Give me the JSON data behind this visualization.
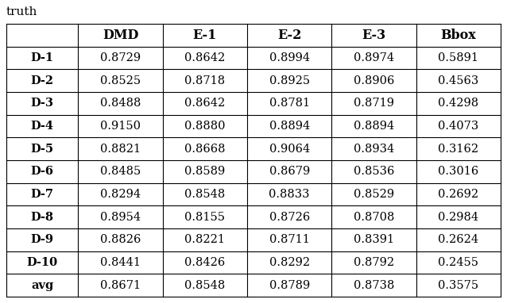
{
  "title": "truth",
  "columns": [
    "",
    "DMD",
    "E-1",
    "E-2",
    "E-3",
    "Bbox"
  ],
  "rows": [
    [
      "D-1",
      "0.8729",
      "0.8642",
      "0.8994",
      "0.8974",
      "0.5891"
    ],
    [
      "D-2",
      "0.8525",
      "0.8718",
      "0.8925",
      "0.8906",
      "0.4563"
    ],
    [
      "D-3",
      "0.8488",
      "0.8642",
      "0.8781",
      "0.8719",
      "0.4298"
    ],
    [
      "D-4",
      "0.9150",
      "0.8880",
      "0.8894",
      "0.8894",
      "0.4073"
    ],
    [
      "D-5",
      "0.8821",
      "0.8668",
      "0.9064",
      "0.8934",
      "0.3162"
    ],
    [
      "D-6",
      "0.8485",
      "0.8589",
      "0.8679",
      "0.8536",
      "0.3016"
    ],
    [
      "D-7",
      "0.8294",
      "0.8548",
      "0.8833",
      "0.8529",
      "0.2692"
    ],
    [
      "D-8",
      "0.8954",
      "0.8155",
      "0.8726",
      "0.8708",
      "0.2984"
    ],
    [
      "D-9",
      "0.8826",
      "0.8221",
      "0.8711",
      "0.8391",
      "0.2624"
    ],
    [
      "D-10",
      "0.8441",
      "0.8426",
      "0.8292",
      "0.8792",
      "0.2455"
    ],
    [
      "avg",
      "0.8671",
      "0.8548",
      "0.8789",
      "0.8738",
      "0.3575"
    ]
  ],
  "background_color": "#ffffff",
  "text_color": "#000000",
  "border_color": "#000000",
  "font_size": 10.5,
  "header_font_size": 11.5,
  "title_font_size": 11,
  "fig_width": 6.38,
  "fig_height": 3.82,
  "dpi": 100
}
